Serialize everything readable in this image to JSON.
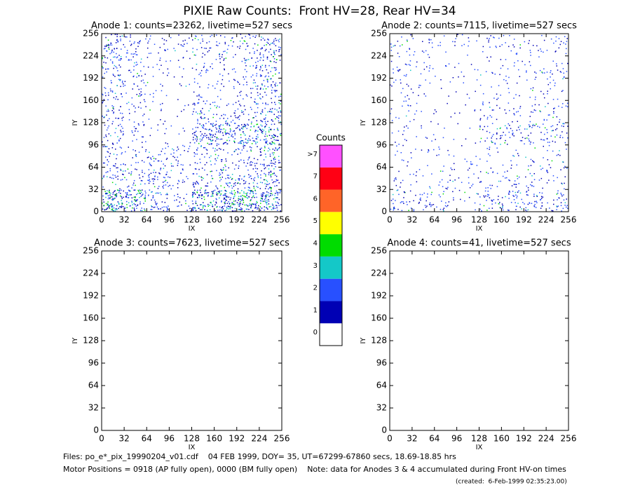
{
  "title": "PIXIE Raw Counts:  Front HV=28, Rear HV=34",
  "chart_data": [
    {
      "type": "heatmap",
      "title": "Anode 1: counts=23262, livetime=527 secs",
      "xlabel": "IX",
      "ylabel": "IY",
      "xlim": [
        0,
        256
      ],
      "ylim": [
        0,
        256
      ],
      "xticks": [
        0,
        32,
        64,
        96,
        128,
        160,
        192,
        224,
        256
      ],
      "yticks": [
        0,
        32,
        64,
        96,
        128,
        160,
        192,
        224,
        256
      ],
      "density": [
        [
          0.5,
          0.3,
          0.2,
          0.15,
          0.3,
          0.25,
          0.3,
          0.5
        ],
        [
          0.45,
          0.3,
          0.15,
          0.1,
          0.2,
          0.2,
          0.3,
          0.5
        ],
        [
          0.4,
          0.25,
          0.1,
          0.05,
          0.15,
          0.15,
          0.3,
          0.5
        ],
        [
          0.35,
          0.2,
          0.1,
          0.05,
          0.4,
          0.3,
          0.35,
          0.55
        ],
        [
          0.35,
          0.2,
          0.1,
          0.05,
          0.8,
          0.8,
          0.8,
          0.8
        ],
        [
          0.35,
          0.2,
          0.3,
          0.3,
          0.3,
          0.3,
          0.4,
          0.6
        ],
        [
          0.35,
          0.3,
          0.5,
          0.2,
          0.4,
          0.5,
          0.5,
          0.6
        ],
        [
          1.2,
          0.9,
          0.5,
          0.2,
          1,
          1.1,
          1.1,
          1
        ]
      ]
    },
    {
      "type": "heatmap",
      "title": "Anode 2: counts=7115, livetime=527 secs",
      "xlabel": "IX",
      "ylabel": "IY",
      "xlim": [
        0,
        256
      ],
      "ylim": [
        0,
        256
      ],
      "xticks": [
        0,
        32,
        64,
        96,
        128,
        160,
        192,
        224,
        256
      ],
      "yticks": [
        0,
        32,
        64,
        96,
        128,
        160,
        192,
        224,
        256
      ],
      "density": [
        [
          0.2,
          0.15,
          0.1,
          0.1,
          0.15,
          0.15,
          0.15,
          0.2
        ],
        [
          0.2,
          0.12,
          0.08,
          0.08,
          0.12,
          0.12,
          0.15,
          0.2
        ],
        [
          0.15,
          0.1,
          0.06,
          0.05,
          0.1,
          0.1,
          0.12,
          0.15
        ],
        [
          0.15,
          0.08,
          0.05,
          0.04,
          0.2,
          0.15,
          0.15,
          0.2
        ],
        [
          0.12,
          0.08,
          0.05,
          0.04,
          0.35,
          0.3,
          0.35,
          0.35
        ],
        [
          0.12,
          0.08,
          0.1,
          0.1,
          0.1,
          0.1,
          0.12,
          0.15
        ],
        [
          0.12,
          0.1,
          0.2,
          0.12,
          0.2,
          0.2,
          0.2,
          0.2
        ],
        [
          0.35,
          0.3,
          0.2,
          0.1,
          0.35,
          0.4,
          0.4,
          0.35
        ]
      ]
    },
    {
      "type": "heatmap",
      "title": "Anode 3: counts=7623, livetime=527 secs",
      "xlabel": "IX",
      "ylabel": "IY",
      "xlim": [
        0,
        256
      ],
      "ylim": [
        0,
        256
      ],
      "xticks": [
        0,
        32,
        64,
        96,
        128,
        160,
        192,
        224,
        256
      ],
      "yticks": [
        0,
        32,
        64,
        96,
        128,
        160,
        192,
        224,
        256
      ]
    },
    {
      "type": "heatmap",
      "title": "Anode 4: counts=41, livetime=527 secs",
      "xlabel": "IX",
      "ylabel": "IY",
      "xlim": [
        0,
        256
      ],
      "ylim": [
        0,
        256
      ],
      "xticks": [
        0,
        32,
        64,
        96,
        128,
        160,
        192,
        224,
        256
      ],
      "yticks": [
        0,
        32,
        64,
        96,
        128,
        160,
        192,
        224,
        256
      ]
    }
  ],
  "colorbar": {
    "title": "Counts",
    "labels": [
      "0",
      "1",
      "2",
      "3",
      "4",
      "5",
      "6",
      "7",
      ">7"
    ],
    "colors": [
      "#ffffff",
      "#0000b4",
      "#2850ff",
      "#14c8c8",
      "#00dc00",
      "#ffff00",
      "#ff6428",
      "#ff0014",
      "#ff50ff"
    ]
  },
  "footer": {
    "files": "Files: po_e*_pix_19990204_v01.cdf    04 FEB 1999, DOY= 35, UT=67299-67860 secs, 18.69-18.85 hrs",
    "motor": "Motor Positions = 0918 (AP fully open), 0000 (BM fully open)    Note: data for Anodes 3 & 4 accumulated during Front HV-on times",
    "created": "(created:  6-Feb-1999 02:35:23.00)"
  }
}
